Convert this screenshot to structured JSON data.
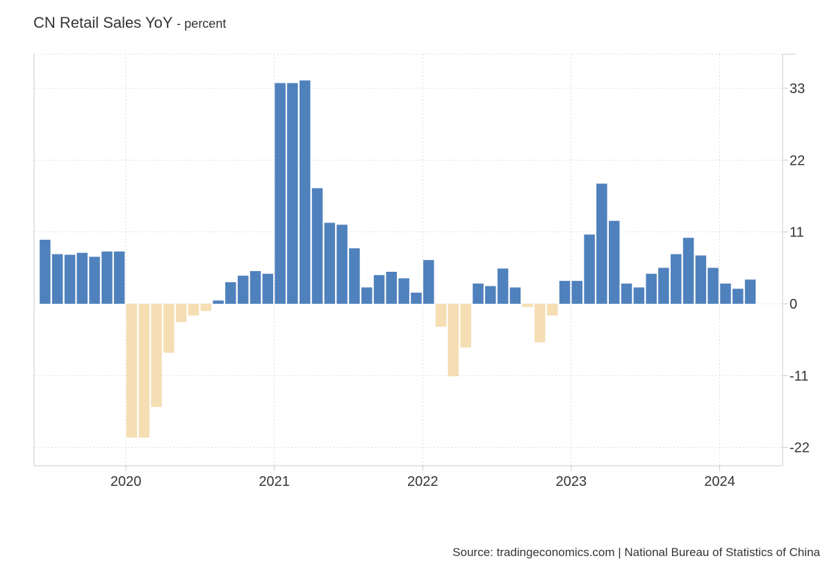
{
  "title": "CN Retail Sales YoY",
  "subtitle": "- percent",
  "source": "Source: tradingeconomics.com | National Bureau of Statistics of China",
  "colors": {
    "positive": "#4f81bd",
    "negative": "#f5deb3",
    "grid": "#dddddd",
    "axis": "#cccccc"
  },
  "chart_data": {
    "type": "bar",
    "ylim": [
      -25,
      38
    ],
    "yticks": [
      33,
      22,
      11,
      0,
      -11,
      -22
    ],
    "grid": true,
    "xtick_labels": [
      "2020",
      "2021",
      "2022",
      "2023",
      "2024"
    ],
    "x_start": "2019-06",
    "series": [
      {
        "values": [
          9.8,
          7.6,
          7.5,
          7.8,
          7.2,
          8.0,
          8.0,
          -20.5,
          -20.5,
          -15.8,
          -7.5,
          -2.8,
          -1.8,
          -1.1,
          0.5,
          3.3,
          4.3,
          5.0,
          4.6,
          33.8,
          33.8,
          34.2,
          17.7,
          12.4,
          12.1,
          8.5,
          2.5,
          4.4,
          4.9,
          3.9,
          1.7,
          6.7,
          -3.5,
          -11.1,
          -6.7,
          3.1,
          2.7,
          5.4,
          2.5,
          -0.5,
          -5.9,
          -1.8,
          3.5,
          3.5,
          10.6,
          18.4,
          12.7,
          3.1,
          2.5,
          4.6,
          5.5,
          7.6,
          10.1,
          7.4,
          5.5,
          3.1,
          2.3,
          3.7
        ]
      }
    ]
  }
}
